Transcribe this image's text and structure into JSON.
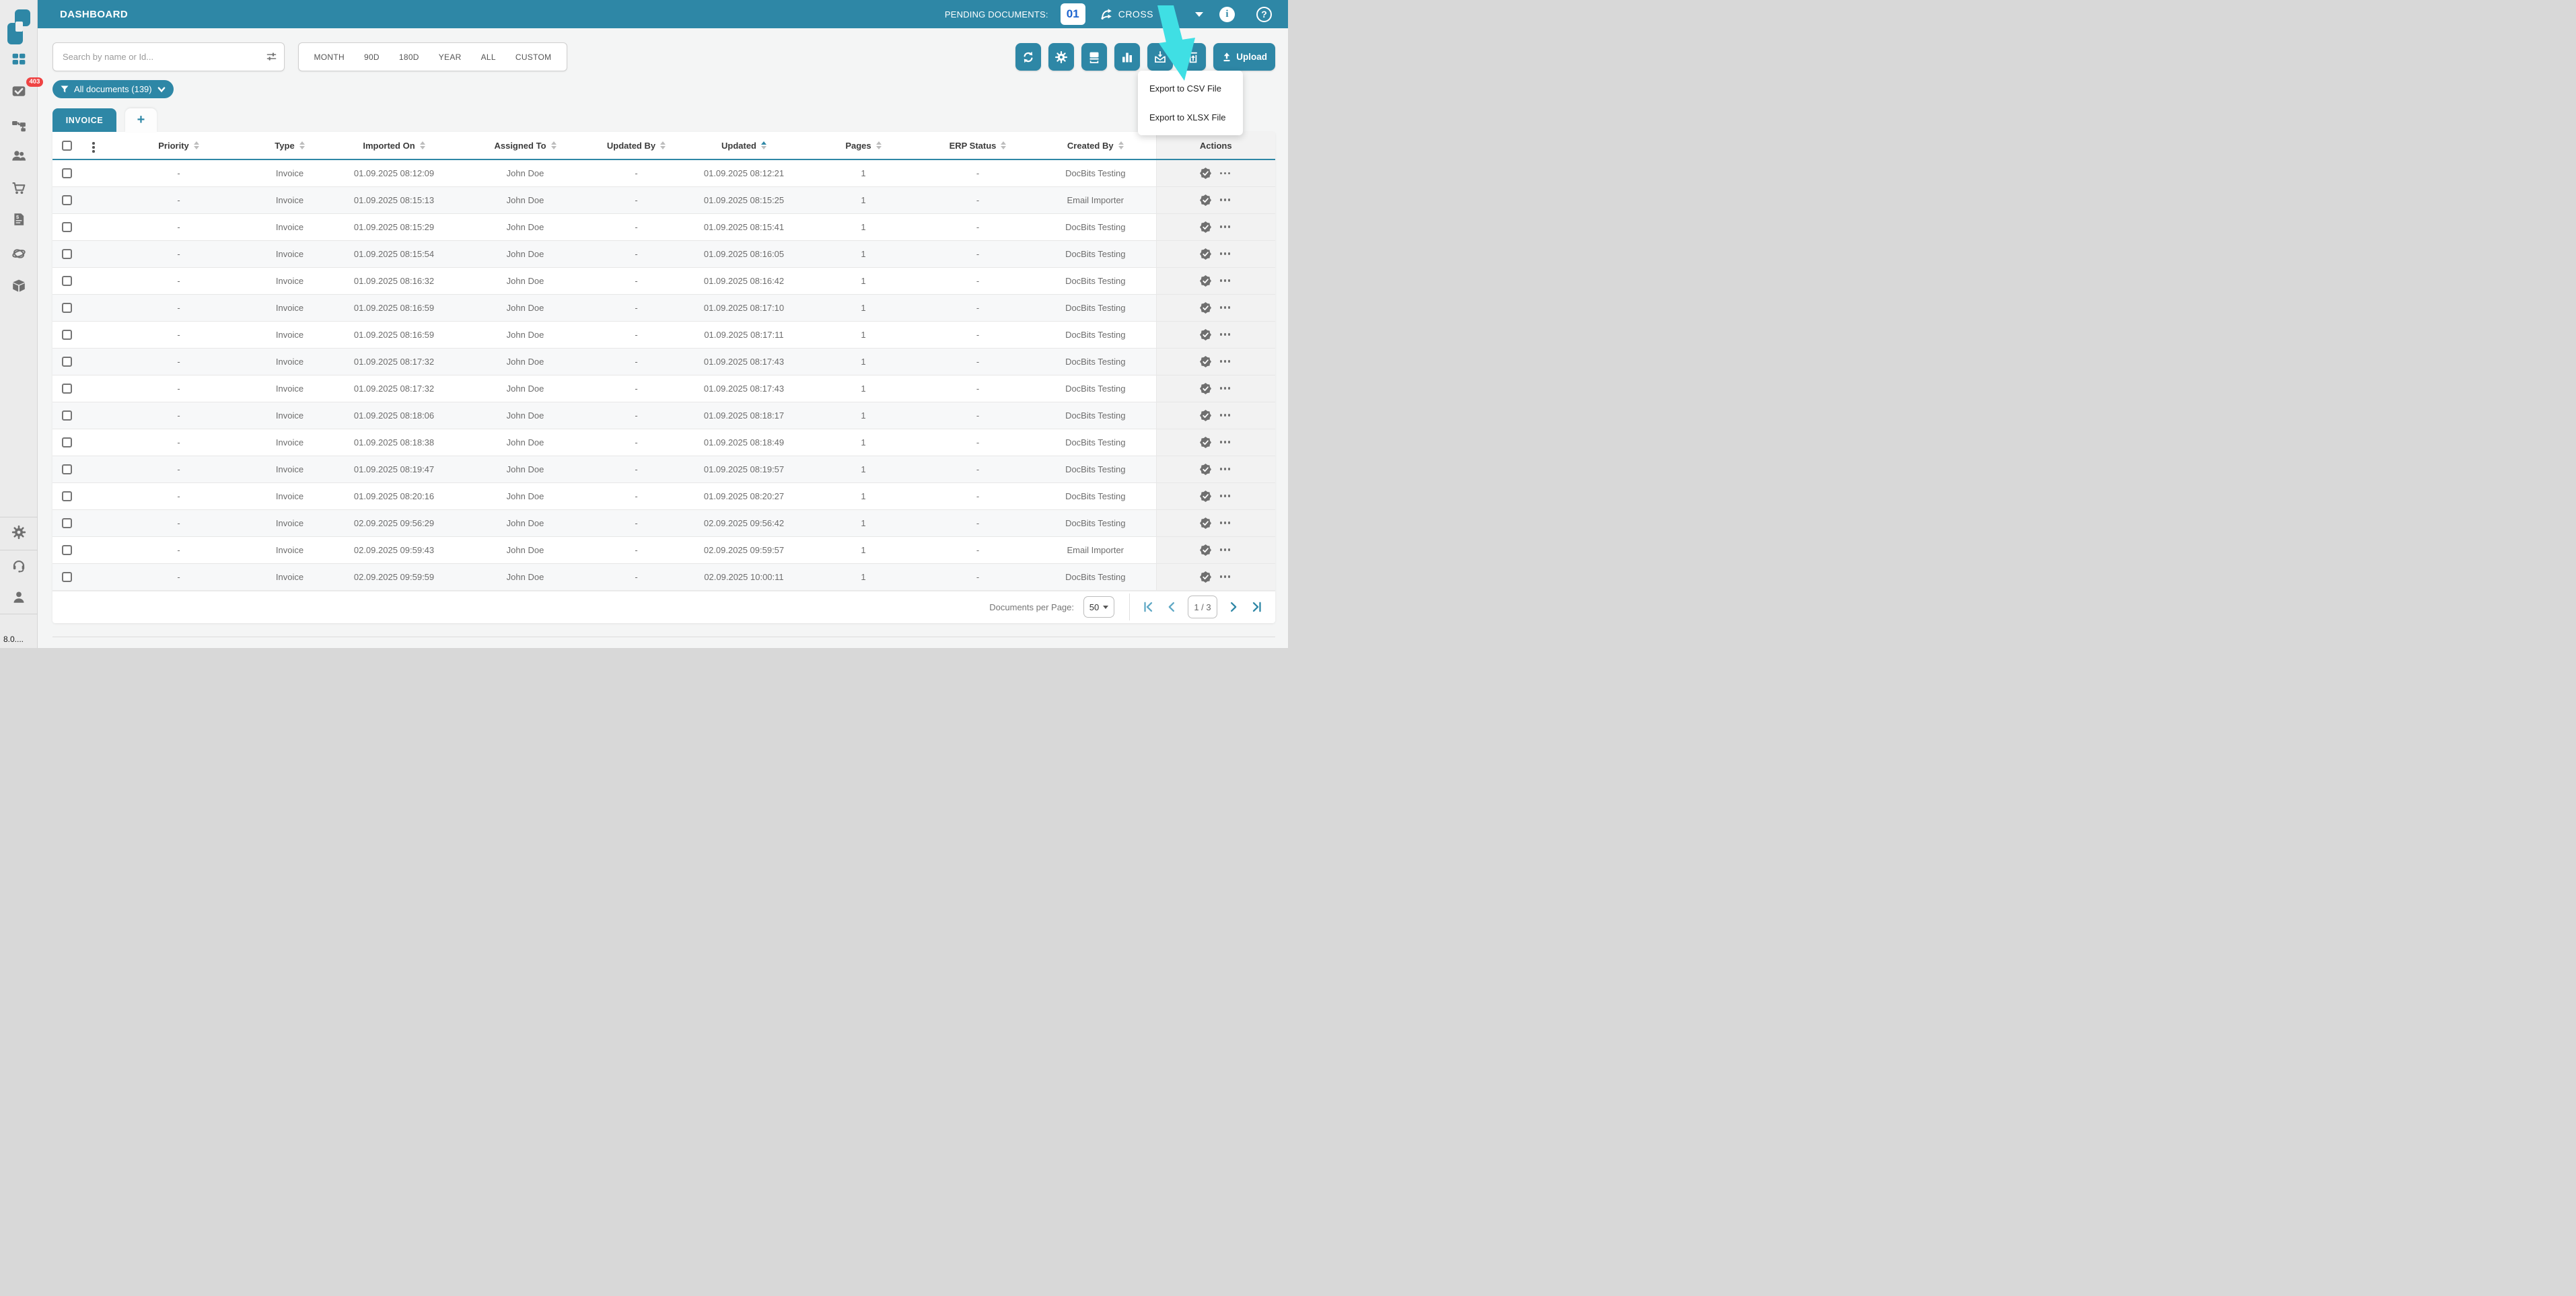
{
  "app": {
    "title": "DASHBOARD",
    "version": "8.0...."
  },
  "header": {
    "pending_label": "PENDING DOCUMENTS:",
    "pending_count": "01",
    "brand": "CROSS"
  },
  "controls": {
    "search_placeholder": "Search by name or Id...",
    "date_filters": [
      "MONTH",
      "90D",
      "180D",
      "YEAR",
      "ALL",
      "CUSTOM"
    ],
    "toolbar_icons": [
      "refresh-icon",
      "gear-icon",
      "scanner-icon",
      "bar-chart-icon",
      "mail-import-icon",
      "export-icon"
    ],
    "upload_label": "Upload"
  },
  "filter_chip": {
    "label": "All documents (139)"
  },
  "tabs": {
    "active": "INVOICE",
    "add": "+"
  },
  "export_menu": {
    "items": [
      "Export to CSV File",
      "Export to XLSX File"
    ]
  },
  "table": {
    "columns": [
      {
        "label": "Priority",
        "sortable": true,
        "sort": null
      },
      {
        "label": "Type",
        "sortable": true,
        "sort": null
      },
      {
        "label": "Imported On",
        "sortable": true,
        "sort": null
      },
      {
        "label": "Assigned To",
        "sortable": true,
        "sort": null
      },
      {
        "label": "Updated By",
        "sortable": true,
        "sort": null
      },
      {
        "label": "Updated",
        "sortable": true,
        "sort": "asc"
      },
      {
        "label": "Pages",
        "sortable": true,
        "sort": null
      },
      {
        "label": "ERP Status",
        "sortable": true,
        "sort": null
      },
      {
        "label": "Created By",
        "sortable": true,
        "sort": null
      },
      {
        "label": "Actions",
        "sortable": false,
        "sort": null
      }
    ],
    "rows": [
      {
        "priority": "-",
        "type": "Invoice",
        "imported_on": "01.09.2025 08:12:09",
        "assigned_to": "John Doe",
        "updated_by": "-",
        "updated": "01.09.2025 08:12:21",
        "pages": "1",
        "erp_status": "-",
        "created_by": "DocBits Testing"
      },
      {
        "priority": "-",
        "type": "Invoice",
        "imported_on": "01.09.2025 08:15:13",
        "assigned_to": "John Doe",
        "updated_by": "-",
        "updated": "01.09.2025 08:15:25",
        "pages": "1",
        "erp_status": "-",
        "created_by": "Email Importer"
      },
      {
        "priority": "-",
        "type": "Invoice",
        "imported_on": "01.09.2025 08:15:29",
        "assigned_to": "John Doe",
        "updated_by": "-",
        "updated": "01.09.2025 08:15:41",
        "pages": "1",
        "erp_status": "-",
        "created_by": "DocBits Testing"
      },
      {
        "priority": "-",
        "type": "Invoice",
        "imported_on": "01.09.2025 08:15:54",
        "assigned_to": "John Doe",
        "updated_by": "-",
        "updated": "01.09.2025 08:16:05",
        "pages": "1",
        "erp_status": "-",
        "created_by": "DocBits Testing"
      },
      {
        "priority": "-",
        "type": "Invoice",
        "imported_on": "01.09.2025 08:16:32",
        "assigned_to": "John Doe",
        "updated_by": "-",
        "updated": "01.09.2025 08:16:42",
        "pages": "1",
        "erp_status": "-",
        "created_by": "DocBits Testing"
      },
      {
        "priority": "-",
        "type": "Invoice",
        "imported_on": "01.09.2025 08:16:59",
        "assigned_to": "John Doe",
        "updated_by": "-",
        "updated": "01.09.2025 08:17:10",
        "pages": "1",
        "erp_status": "-",
        "created_by": "DocBits Testing"
      },
      {
        "priority": "-",
        "type": "Invoice",
        "imported_on": "01.09.2025 08:16:59",
        "assigned_to": "John Doe",
        "updated_by": "-",
        "updated": "01.09.2025 08:17:11",
        "pages": "1",
        "erp_status": "-",
        "created_by": "DocBits Testing"
      },
      {
        "priority": "-",
        "type": "Invoice",
        "imported_on": "01.09.2025 08:17:32",
        "assigned_to": "John Doe",
        "updated_by": "-",
        "updated": "01.09.2025 08:17:43",
        "pages": "1",
        "erp_status": "-",
        "created_by": "DocBits Testing"
      },
      {
        "priority": "-",
        "type": "Invoice",
        "imported_on": "01.09.2025 08:17:32",
        "assigned_to": "John Doe",
        "updated_by": "-",
        "updated": "01.09.2025 08:17:43",
        "pages": "1",
        "erp_status": "-",
        "created_by": "DocBits Testing"
      },
      {
        "priority": "-",
        "type": "Invoice",
        "imported_on": "01.09.2025 08:18:06",
        "assigned_to": "John Doe",
        "updated_by": "-",
        "updated": "01.09.2025 08:18:17",
        "pages": "1",
        "erp_status": "-",
        "created_by": "DocBits Testing"
      },
      {
        "priority": "-",
        "type": "Invoice",
        "imported_on": "01.09.2025 08:18:38",
        "assigned_to": "John Doe",
        "updated_by": "-",
        "updated": "01.09.2025 08:18:49",
        "pages": "1",
        "erp_status": "-",
        "created_by": "DocBits Testing"
      },
      {
        "priority": "-",
        "type": "Invoice",
        "imported_on": "01.09.2025 08:19:47",
        "assigned_to": "John Doe",
        "updated_by": "-",
        "updated": "01.09.2025 08:19:57",
        "pages": "1",
        "erp_status": "-",
        "created_by": "DocBits Testing"
      },
      {
        "priority": "-",
        "type": "Invoice",
        "imported_on": "01.09.2025 08:20:16",
        "assigned_to": "John Doe",
        "updated_by": "-",
        "updated": "01.09.2025 08:20:27",
        "pages": "1",
        "erp_status": "-",
        "created_by": "DocBits Testing"
      },
      {
        "priority": "-",
        "type": "Invoice",
        "imported_on": "02.09.2025 09:56:29",
        "assigned_to": "John Doe",
        "updated_by": "-",
        "updated": "02.09.2025 09:56:42",
        "pages": "1",
        "erp_status": "-",
        "created_by": "DocBits Testing"
      },
      {
        "priority": "-",
        "type": "Invoice",
        "imported_on": "02.09.2025 09:59:43",
        "assigned_to": "John Doe",
        "updated_by": "-",
        "updated": "02.09.2025 09:59:57",
        "pages": "1",
        "erp_status": "-",
        "created_by": "Email Importer"
      },
      {
        "priority": "-",
        "type": "Invoice",
        "imported_on": "02.09.2025 09:59:59",
        "assigned_to": "John Doe",
        "updated_by": "-",
        "updated": "02.09.2025 10:00:11",
        "pages": "1",
        "erp_status": "-",
        "created_by": "DocBits Testing"
      }
    ]
  },
  "pagination": {
    "per_page_label": "Documents per Page:",
    "per_page": "50",
    "page_indicator": "1 / 3"
  },
  "sidebar": {
    "badge_count": "403",
    "items": [
      "dashboard",
      "tasks",
      "workflow",
      "users",
      "purchase",
      "invoices",
      "integrations",
      "packages"
    ],
    "footer_items": [
      "settings",
      "support",
      "profile"
    ]
  },
  "colors": {
    "accent_teal": "#2e87a6",
    "badge_red": "#ef4444",
    "pending_blue": "#1b63cf",
    "annotation_cyan": "#3fdfe4"
  }
}
